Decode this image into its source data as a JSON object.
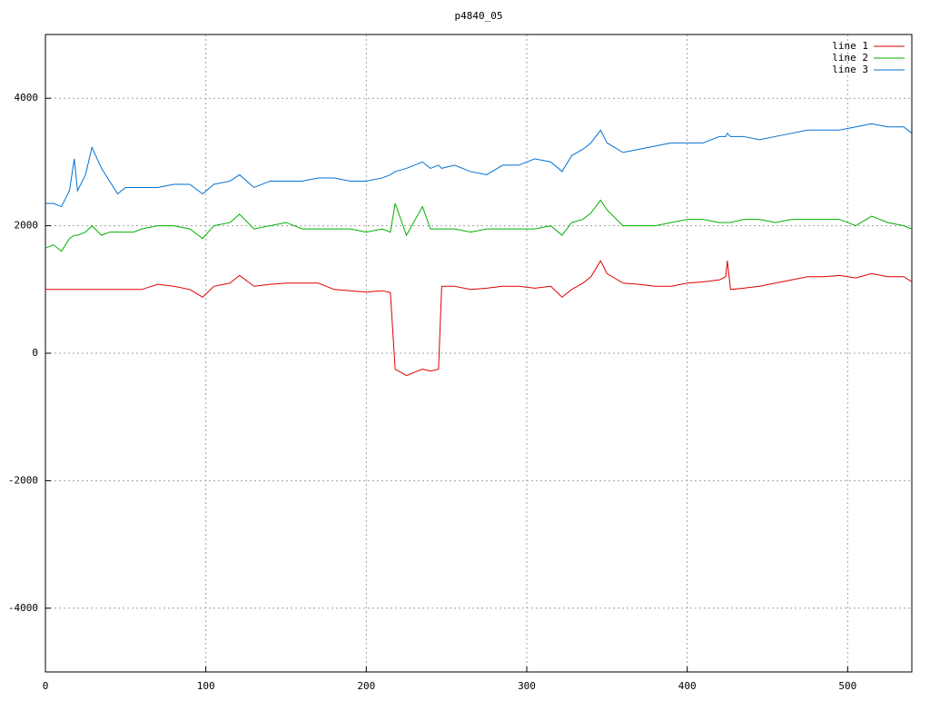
{
  "chart_data": {
    "type": "line",
    "title": "p4840_05",
    "x": [
      0,
      5,
      10,
      15,
      18,
      20,
      25,
      29,
      35,
      40,
      45,
      50,
      55,
      60,
      70,
      80,
      90,
      98,
      105,
      115,
      121,
      130,
      140,
      150,
      160,
      170,
      180,
      190,
      200,
      210,
      215,
      218,
      225,
      235,
      240,
      245,
      247,
      255,
      265,
      275,
      285,
      295,
      305,
      315,
      322,
      328,
      335,
      340,
      346,
      350,
      360,
      370,
      380,
      390,
      400,
      410,
      420,
      424,
      425,
      427,
      435,
      445,
      455,
      465,
      475,
      485,
      495,
      505,
      515,
      525,
      535,
      540
    ],
    "series": [
      {
        "name": "line 1",
        "color": "#e00000",
        "values": [
          1000,
          1000,
          1000,
          1000,
          1000,
          1000,
          1000,
          1000,
          1000,
          1000,
          1000,
          1000,
          1000,
          1000,
          1080,
          1050,
          1000,
          880,
          1050,
          1100,
          1220,
          1050,
          1080,
          1100,
          1100,
          1100,
          1000,
          980,
          960,
          980,
          950,
          -250,
          -350,
          -250,
          -280,
          -250,
          1050,
          1050,
          1000,
          1020,
          1050,
          1050,
          1020,
          1050,
          880,
          1000,
          1100,
          1200,
          1450,
          1250,
          1100,
          1080,
          1050,
          1050,
          1100,
          1120,
          1150,
          1200,
          1450,
          1000,
          1020,
          1050,
          1100,
          1150,
          1200,
          1200,
          1220,
          1180,
          1250,
          1200,
          1200,
          1120
        ]
      },
      {
        "name": "line 2",
        "color": "#00b000",
        "values": [
          1650,
          1700,
          1600,
          1800,
          1850,
          1850,
          1900,
          2000,
          1850,
          1900,
          1900,
          1900,
          1900,
          1950,
          2000,
          2000,
          1950,
          1800,
          2000,
          2050,
          2180,
          1950,
          2000,
          2050,
          1950,
          1950,
          1950,
          1950,
          1900,
          1950,
          1900,
          2350,
          1850,
          2300,
          1950,
          1950,
          1950,
          1950,
          1900,
          1950,
          1950,
          1950,
          1950,
          2000,
          1850,
          2050,
          2100,
          2200,
          2400,
          2250,
          2000,
          2000,
          2000,
          2050,
          2100,
          2100,
          2050,
          2050,
          2050,
          2050,
          2100,
          2100,
          2050,
          2100,
          2100,
          2100,
          2100,
          2000,
          2150,
          2050,
          2000,
          1950
        ]
      },
      {
        "name": "line 3",
        "color": "#0070d0",
        "values": [
          2350,
          2350,
          2300,
          2550,
          3050,
          2550,
          2800,
          3230,
          2900,
          2700,
          2500,
          2600,
          2600,
          2600,
          2600,
          2650,
          2650,
          2500,
          2650,
          2700,
          2800,
          2600,
          2700,
          2700,
          2700,
          2750,
          2750,
          2700,
          2700,
          2750,
          2800,
          2850,
          2900,
          3000,
          2900,
          2950,
          2900,
          2950,
          2850,
          2800,
          2950,
          2950,
          3050,
          3000,
          2850,
          3100,
          3200,
          3300,
          3500,
          3300,
          3150,
          3200,
          3250,
          3300,
          3300,
          3300,
          3400,
          3400,
          3450,
          3400,
          3400,
          3350,
          3400,
          3450,
          3500,
          3500,
          3500,
          3550,
          3600,
          3550,
          3550,
          3450
        ]
      }
    ],
    "xlim": [
      0,
      540
    ],
    "xticks": [
      0,
      100,
      200,
      300,
      400,
      500
    ],
    "ylim": [
      -5000,
      5000
    ],
    "yticks": [
      -4000,
      -2000,
      0,
      2000,
      4000
    ],
    "grid": true,
    "legend": "top-right"
  }
}
